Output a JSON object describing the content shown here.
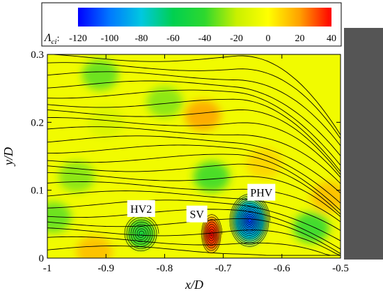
{
  "chart_data": {
    "type": "heatmap",
    "xlabel": "x/D",
    "ylabel": "y/D",
    "xlim": [
      -1,
      -0.5
    ],
    "ylim": [
      0,
      0.3
    ],
    "x_ticks": [
      -1,
      -0.9,
      -0.8,
      -0.7,
      -0.6,
      -0.5
    ],
    "x_tick_labels": [
      "-1",
      "-0.9",
      "-0.8",
      "-0.7",
      "-0.6",
      "-0.5"
    ],
    "y_ticks": [
      0,
      0.1,
      0.2,
      0.3
    ],
    "y_tick_labels": [
      "0",
      "0.1",
      "0.2",
      "0.3"
    ],
    "colorbar": {
      "label_symbol": "Λ",
      "label_subscript": "ci",
      "label_suffix": ":",
      "range": [
        -120,
        40
      ],
      "ticks": [
        -120,
        -100,
        -80,
        -60,
        -40,
        -20,
        0,
        20,
        40
      ],
      "tick_labels": [
        "-120",
        "-100",
        "-80",
        "-60",
        "-40",
        "-20",
        "0",
        "20",
        "40"
      ],
      "colors": [
        "#0000ff",
        "#0078ff",
        "#00c8e0",
        "#00d050",
        "#2ed82e",
        "#c8f000",
        "#ffff00",
        "#ffa000",
        "#ff0000"
      ]
    },
    "background_value": -5,
    "obstacle": {
      "x_start": -0.5,
      "color": "#555555"
    },
    "vortices": [
      {
        "name": "HV2",
        "x": -0.84,
        "y": 0.036,
        "value": -50,
        "radius_x": 0.03,
        "radius_y": 0.028
      },
      {
        "name": "SV",
        "x": -0.72,
        "y": 0.035,
        "value": 40,
        "radius_x": 0.018,
        "radius_y": 0.03
      },
      {
        "name": "PHV",
        "x": -0.655,
        "y": 0.055,
        "value": -110,
        "radius_x": 0.035,
        "radius_y": 0.04
      }
    ],
    "regions": [
      {
        "x": -0.91,
        "y": 0.27,
        "value": -35
      },
      {
        "x": -0.8,
        "y": 0.23,
        "value": -30
      },
      {
        "x": -0.735,
        "y": 0.21,
        "value": 20
      },
      {
        "x": -0.72,
        "y": 0.12,
        "value": -40
      },
      {
        "x": -0.9,
        "y": 0.2,
        "value": -15
      },
      {
        "x": -0.95,
        "y": 0.12,
        "value": -30
      },
      {
        "x": -0.99,
        "y": 0.06,
        "value": -35
      },
      {
        "x": -0.55,
        "y": 0.045,
        "value": -45
      },
      {
        "x": -0.63,
        "y": 0.14,
        "value": 10
      },
      {
        "x": -0.52,
        "y": 0.09,
        "value": 15
      },
      {
        "x": -0.92,
        "y": 0.01,
        "value": 15
      }
    ],
    "annotations": [
      {
        "text": "HV2",
        "x": -0.84,
        "y": 0.073
      },
      {
        "text": "SV",
        "x": -0.745,
        "y": 0.065
      },
      {
        "text": "PHV",
        "x": -0.635,
        "y": 0.097
      }
    ]
  }
}
